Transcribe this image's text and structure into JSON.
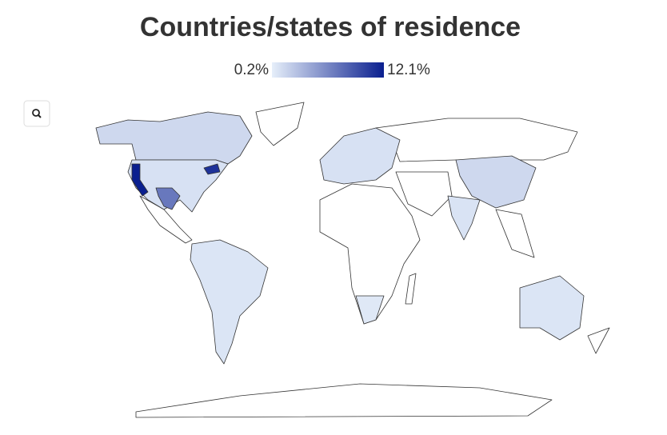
{
  "chart_data": {
    "type": "choropleth",
    "title": "Countries/states of residence",
    "colors": [
      "#e6effa",
      "#0a1f8f"
    ],
    "ticks": [
      {
        "value": 0.2,
        "label": "0.2%"
      },
      {
        "value": 12.1,
        "label": "12.1%"
      }
    ],
    "values": [
      1.5,
      1,
      0.8,
      1,
      1.5,
      0.9,
      0.8,
      0.6,
      12.1,
      11,
      7
    ]
  }
}
